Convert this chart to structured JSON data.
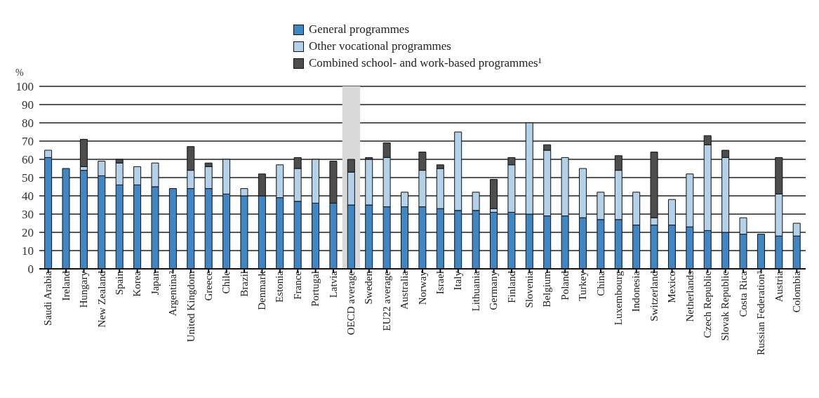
{
  "chart_data": {
    "type": "bar",
    "stacked": true,
    "ylabel": "%",
    "legend": "top",
    "grid": "y",
    "categories": [
      "Saudi Arabia",
      "Ireland",
      "Hungary",
      "New Zealand",
      "Spain",
      "Korea",
      "Japan",
      "Argentina²",
      "United Kingdom",
      "Greece",
      "Chile",
      "Brazil",
      "Denmark",
      "Estonia",
      "France",
      "Portugal",
      "Latvia",
      "OECD average",
      "Sweden",
      "EU22 average",
      "Australia",
      "Norway",
      "Israel",
      "Italy",
      "Lithuania",
      "Germany",
      "Finland",
      "Slovenia",
      "Belgium",
      "Poland",
      "Turkey",
      "China",
      "Luxembourg",
      "Indonesia",
      "Switzerland",
      "Mexico",
      "Netherlands",
      "Czech Republic",
      "Slovak Republic",
      "Costa Rica",
      "Russian Federation³",
      "Austria",
      "Colombia"
    ],
    "series": [
      {
        "name": "General programmes",
        "color": "#3f86c4",
        "values": [
          61,
          55,
          54,
          51,
          46,
          46,
          45,
          44,
          44,
          44,
          41,
          40,
          40,
          39,
          37,
          36,
          36,
          35,
          35,
          34,
          34,
          34,
          33,
          32,
          32,
          31,
          31,
          30,
          29,
          29,
          28,
          27,
          27,
          24,
          24,
          24,
          23,
          21,
          20,
          19,
          19,
          18,
          18
        ]
      },
      {
        "name": "Other vocational programmes",
        "color": "#b4d1ea",
        "values": [
          4,
          0,
          2,
          8,
          12,
          10,
          13,
          0,
          10,
          12,
          19,
          4,
          0,
          18,
          18,
          24,
          0,
          18,
          25,
          27,
          8,
          20,
          22,
          43,
          10,
          2,
          26,
          50,
          36,
          32,
          27,
          15,
          27,
          18,
          4,
          14,
          29,
          47,
          41,
          9,
          0,
          23,
          7
        ]
      },
      {
        "name": "Combined school- and work-based programmes¹",
        "color": "#4d4d4d",
        "values": [
          0,
          0,
          15,
          0,
          2,
          0,
          0,
          0,
          13,
          2,
          0,
          0,
          12,
          0,
          6,
          0,
          23,
          7,
          1,
          8,
          0,
          10,
          2,
          0,
          0,
          16,
          4,
          0,
          3,
          0,
          0,
          0,
          8,
          0,
          36,
          0,
          0,
          5,
          4,
          0,
          0,
          20,
          0
        ]
      }
    ],
    "ylim": [
      0,
      100
    ],
    "yticks": [
      0,
      10,
      20,
      30,
      40,
      50,
      60,
      70,
      80,
      90,
      100
    ],
    "bands": [
      {
        "axis": "x",
        "from": "OECD average",
        "to": "OECD average",
        "color": "#d9d9d9"
      }
    ]
  }
}
